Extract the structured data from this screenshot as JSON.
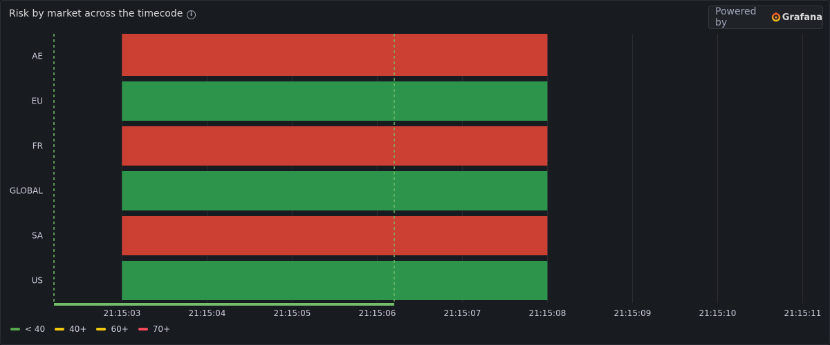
{
  "panel": {
    "title": "Risk by market across the timecode",
    "info_icon": "info-icon"
  },
  "badge": {
    "prefix": "Powered by",
    "brand": "Grafana",
    "icon": "grafana-logo-icon"
  },
  "colors": {
    "green": "#2d954b",
    "red": "#cc3f33",
    "yellow": "#f2c80f",
    "legend_green": "#56a64b",
    "legend_red": "#f2495c",
    "cursor": "#73bf69",
    "grid": "#2c2f35"
  },
  "legend": [
    {
      "label": "< 40",
      "color": "#56a64b"
    },
    {
      "label": "40+",
      "color": "#f2c80f"
    },
    {
      "label": "60+",
      "color": "#f2c80f"
    },
    {
      "label": "70+",
      "color": "#f2495c"
    }
  ],
  "chart_data": {
    "type": "state-timeline",
    "title": "Risk by market across the timecode",
    "x_unit": "time",
    "x_range": [
      "21:15:02.2",
      "21:15:11.2"
    ],
    "x_ticks": [
      "21:15:03",
      "21:15:04",
      "21:15:05",
      "21:15:06",
      "21:15:07",
      "21:15:08",
      "21:15:09",
      "21:15:10",
      "21:15:11"
    ],
    "rows": [
      {
        "label": "AE",
        "segments": [
          {
            "start": "21:15:03",
            "end": "21:15:08",
            "state": "70+"
          }
        ]
      },
      {
        "label": "EU",
        "segments": [
          {
            "start": "21:15:03",
            "end": "21:15:08",
            "state": "< 40"
          }
        ]
      },
      {
        "label": "FR",
        "segments": [
          {
            "start": "21:15:03",
            "end": "21:15:08",
            "state": "70+"
          }
        ]
      },
      {
        "label": "GLOBAL",
        "segments": [
          {
            "start": "21:15:03",
            "end": "21:15:08",
            "state": "< 40"
          }
        ]
      },
      {
        "label": "SA",
        "segments": [
          {
            "start": "21:15:03",
            "end": "21:15:08",
            "state": "70+"
          }
        ]
      },
      {
        "label": "US",
        "segments": [
          {
            "start": "21:15:03",
            "end": "21:15:08",
            "state": "< 40"
          }
        ]
      }
    ],
    "state_colors": {
      "< 40": "#2d954b",
      "40+": "#f2c80f",
      "60+": "#f2c80f",
      "70+": "#cc3f33"
    },
    "markers": [
      {
        "time": "21:15:02.2",
        "style": "dashed"
      },
      {
        "time": "21:15:06.2",
        "style": "dashed"
      }
    ],
    "progress": {
      "start": "21:15:02.2",
      "end": "21:15:06.2"
    },
    "grid": true,
    "legend_position": "bottom-left"
  }
}
